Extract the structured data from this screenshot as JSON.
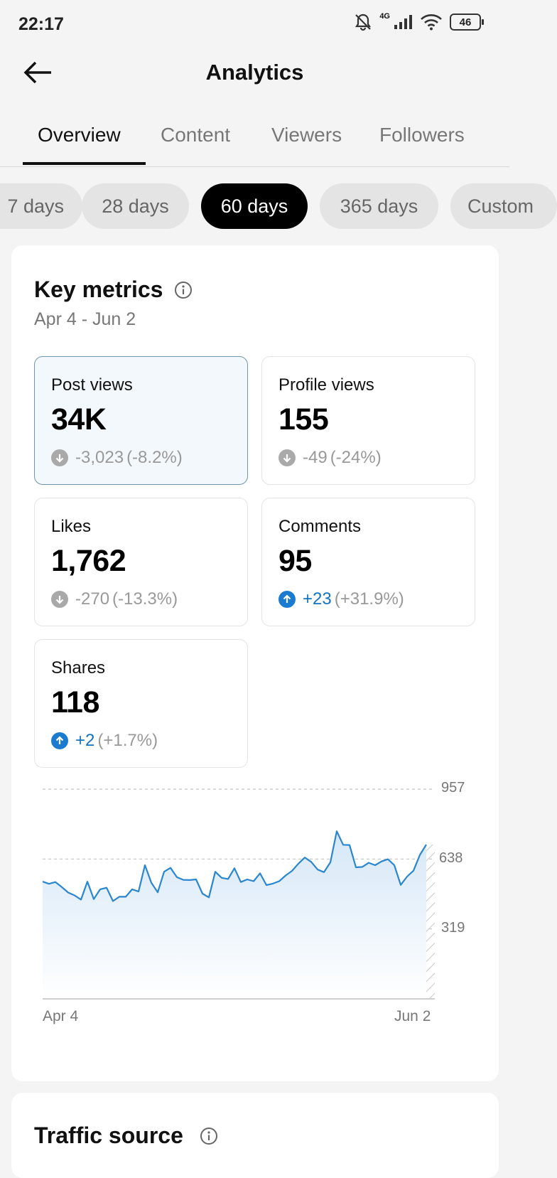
{
  "status": {
    "time": "22:17",
    "network": "4G",
    "battery": "46"
  },
  "header": {
    "title": "Analytics"
  },
  "tabs": [
    {
      "label": "Overview",
      "active": true
    },
    {
      "label": "Content",
      "active": false
    },
    {
      "label": "Viewers",
      "active": false
    },
    {
      "label": "Followers",
      "active": false
    }
  ],
  "ranges": [
    {
      "label": "7 days",
      "active": false
    },
    {
      "label": "28 days",
      "active": false
    },
    {
      "label": "60 days",
      "active": true
    },
    {
      "label": "365 days",
      "active": false
    },
    {
      "label": "Custom",
      "active": false
    }
  ],
  "key_metrics": {
    "title": "Key metrics",
    "date_range": "Apr 4 - Jun 2",
    "metrics": [
      {
        "label": "Post views",
        "value": "34K",
        "change": "-3,023",
        "percent": "(-8.2%)",
        "direction": "down",
        "selected": true
      },
      {
        "label": "Profile views",
        "value": "155",
        "change": "-49",
        "percent": "(-24%)",
        "direction": "down",
        "selected": false
      },
      {
        "label": "Likes",
        "value": "1,762",
        "change": "-270",
        "percent": "(-13.3%)",
        "direction": "down",
        "selected": false
      },
      {
        "label": "Comments",
        "value": "95",
        "change": "+23",
        "percent": "(+31.9%)",
        "direction": "up",
        "selected": false
      },
      {
        "label": "Shares",
        "value": "118",
        "change": "+2",
        "percent": "(+1.7%)",
        "direction": "up",
        "selected": false
      }
    ]
  },
  "chart_data": {
    "type": "area",
    "y_ticks": [
      "957",
      "638",
      "319"
    ],
    "ylim": [
      0,
      957
    ],
    "x_tick_labels": [
      "Apr 4",
      "Jun 2"
    ],
    "grid": true,
    "series": [
      {
        "values": [
          535,
          525,
          533,
          510,
          485,
          472,
          453,
          535,
          455,
          500,
          507,
          446,
          466,
          466,
          500,
          490,
          610,
          530,
          486,
          580,
          598,
          555,
          543,
          542,
          545,
          480,
          463,
          580,
          552,
          547,
          596,
          533,
          545,
          537,
          573,
          519,
          526,
          537,
          563,
          584,
          617,
          645,
          625,
          590,
          578,
          623,
          765,
          703,
          702,
          600,
          602,
          621,
          610,
          627,
          637,
          610,
          520,
          558,
          585,
          657,
          704
        ],
        "color": "#2a86cf",
        "fill": "#dcebf8"
      }
    ]
  },
  "traffic_source": {
    "title": "Traffic source"
  },
  "colors": {
    "accent": "#1b7bd0",
    "active_chip": "#000000"
  }
}
